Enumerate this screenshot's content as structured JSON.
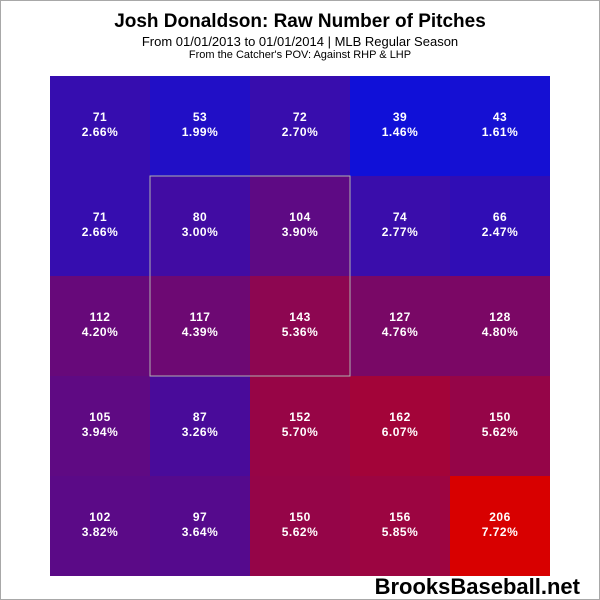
{
  "header": {
    "title": "Josh Donaldson: Raw Number of Pitches",
    "subtitle": "From 01/01/2013 to 01/01/2014 | MLB Regular Season",
    "note": "From the Catcher's POV:  Against RHP & LHP"
  },
  "watermark": "BrooksBaseball.net",
  "colors": {
    "low": "#1010d8",
    "high": "#d80000",
    "text": "#ffffff",
    "strike_zone_border": "#b0b0b0"
  },
  "chart_data": {
    "type": "heatmap",
    "title": "Josh Donaldson: Raw Number of Pitches",
    "subtitle": "From 01/01/2013 to 01/01/2014 | MLB Regular Season",
    "rows": 5,
    "cols": 5,
    "counts": [
      [
        71,
        53,
        72,
        39,
        43
      ],
      [
        71,
        80,
        104,
        74,
        66
      ],
      [
        112,
        117,
        143,
        127,
        128
      ],
      [
        105,
        87,
        152,
        162,
        150
      ],
      [
        102,
        97,
        150,
        156,
        206
      ]
    ],
    "percents": [
      [
        "2.66%",
        "1.99%",
        "2.70%",
        "1.46%",
        "1.61%"
      ],
      [
        "2.66%",
        "3.00%",
        "3.90%",
        "2.77%",
        "2.47%"
      ],
      [
        "4.20%",
        "4.39%",
        "5.36%",
        "4.76%",
        "4.80%"
      ],
      [
        "3.94%",
        "3.26%",
        "5.70%",
        "6.07%",
        "5.62%"
      ],
      [
        "3.82%",
        "3.64%",
        "5.62%",
        "5.85%",
        "7.72%"
      ]
    ],
    "strike_zone": {
      "row_start": 1,
      "row_end": 3,
      "col_start": 1,
      "col_end": 3
    },
    "grid": false,
    "legend": "none"
  }
}
